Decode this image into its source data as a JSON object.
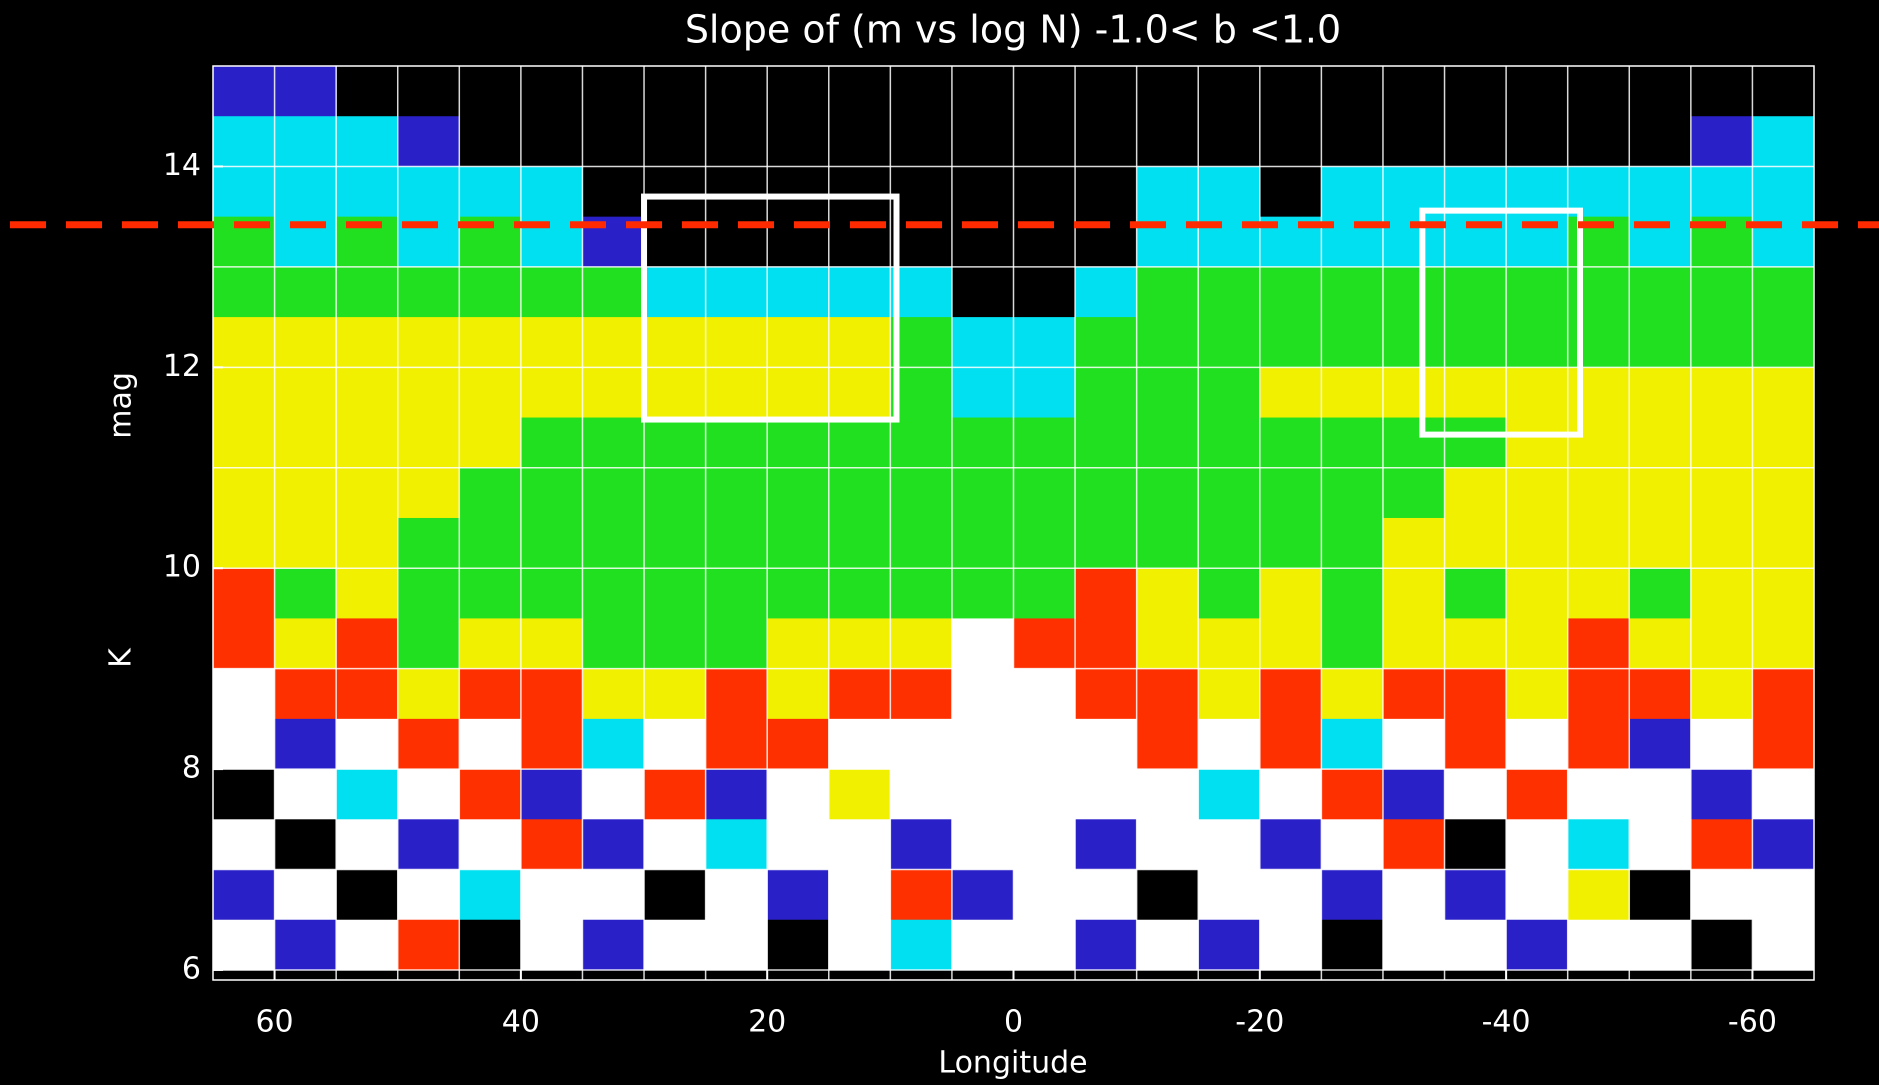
{
  "chart_data": {
    "type": "heatmap",
    "title": "Slope of (m vs log N) -1.0< b <1.0",
    "xlabel": "Longitude",
    "ylabel": "K mag",
    "xlim": [
      65,
      -65
    ],
    "ylim": [
      5.9,
      15
    ],
    "xticks": [
      60,
      40,
      20,
      0,
      -20,
      -40,
      -60
    ],
    "yticks": [
      6,
      8,
      10,
      12,
      14
    ],
    "grid": true,
    "xgrid": [
      60,
      55,
      50,
      45,
      40,
      35,
      30,
      25,
      20,
      15,
      10,
      5,
      0,
      -5,
      -10,
      -15,
      -20,
      -25,
      -30,
      -35,
      -40,
      -45,
      -50,
      -55,
      -60
    ],
    "ygrid": [
      6,
      7,
      8,
      9,
      10,
      11,
      12,
      13,
      14
    ],
    "x_edges": [
      65,
      60,
      55,
      50,
      45,
      40,
      35,
      30,
      25,
      20,
      15,
      10,
      5,
      0,
      -5,
      -10,
      -15,
      -20,
      -25,
      -30,
      -35,
      -40,
      -45,
      -50,
      -55,
      -60,
      -65
    ],
    "y_edges": [
      15,
      14.5,
      14,
      13.5,
      13,
      12.5,
      12,
      11.5,
      11,
      10.5,
      10,
      9.5,
      9,
      8.5,
      8,
      7.5,
      7,
      6.5,
      6
    ],
    "colormap": [
      {
        "value": 0,
        "color": "#000000"
      },
      {
        "value": 0.1,
        "color": "#2a20c8"
      },
      {
        "value": 0.25,
        "color": "#00e0f0"
      },
      {
        "value": 0.4,
        "color": "#20e020"
      },
      {
        "value": 0.55,
        "color": "#f0f000"
      },
      {
        "value": 0.7,
        "color": "#ff3000"
      },
      {
        "value": 0.9,
        "color": "#ffffff"
      }
    ],
    "z": [
      [
        0.1,
        0.1,
        null,
        null,
        null,
        null,
        null,
        null,
        null,
        null,
        null,
        null,
        null,
        null,
        null,
        null,
        null,
        null,
        null,
        null,
        null,
        null,
        null,
        null,
        null,
        null
      ],
      [
        0.25,
        0.25,
        0.3,
        0.2,
        null,
        null,
        null,
        null,
        null,
        null,
        null,
        null,
        null,
        null,
        null,
        null,
        null,
        null,
        null,
        null,
        null,
        null,
        null,
        null,
        0.2,
        0.25
      ],
      [
        0.3,
        0.3,
        0.3,
        0.3,
        0.25,
        0.3,
        null,
        null,
        null,
        null,
        null,
        null,
        null,
        null,
        null,
        0.25,
        0.25,
        null,
        0.25,
        0.3,
        0.3,
        0.3,
        0.3,
        0.3,
        0.3,
        0.3
      ],
      [
        0.4,
        0.35,
        0.4,
        0.35,
        0.4,
        0.35,
        0.2,
        null,
        null,
        null,
        null,
        null,
        null,
        null,
        null,
        0.35,
        0.35,
        0.3,
        0.35,
        0.3,
        0.35,
        0.35,
        0.4,
        0.35,
        0.4,
        0.35
      ],
      [
        0.45,
        0.45,
        0.45,
        0.45,
        0.45,
        0.45,
        0.4,
        0.35,
        0.35,
        0.35,
        0.35,
        0.35,
        null,
        null,
        0.3,
        0.4,
        0.4,
        0.4,
        0.4,
        0.4,
        0.4,
        0.4,
        0.4,
        0.4,
        0.4,
        0.4
      ],
      [
        0.6,
        0.6,
        0.6,
        0.6,
        0.6,
        0.6,
        0.6,
        0.65,
        0.65,
        0.65,
        0.65,
        0.45,
        0.25,
        0.25,
        0.4,
        0.4,
        0.4,
        0.5,
        0.5,
        0.5,
        0.5,
        0.5,
        0.5,
        0.5,
        0.5,
        0.5
      ],
      [
        0.6,
        0.6,
        0.6,
        0.6,
        0.6,
        0.6,
        0.6,
        0.62,
        0.62,
        0.62,
        0.62,
        0.45,
        0.35,
        0.35,
        0.4,
        0.4,
        0.4,
        0.55,
        0.55,
        0.55,
        0.55,
        0.55,
        0.6,
        0.6,
        0.6,
        0.6
      ],
      [
        0.65,
        0.65,
        0.65,
        0.65,
        0.65,
        0.5,
        0.5,
        0.5,
        0.5,
        0.5,
        0.5,
        0.4,
        0.4,
        0.4,
        0.4,
        0.45,
        0.45,
        0.45,
        0.45,
        0.45,
        0.45,
        0.6,
        0.6,
        0.6,
        0.6,
        0.6
      ],
      [
        0.6,
        0.6,
        0.6,
        0.6,
        0.45,
        0.45,
        0.45,
        0.45,
        0.45,
        0.45,
        0.45,
        0.45,
        0.4,
        0.4,
        0.4,
        0.45,
        0.45,
        0.45,
        0.45,
        0.45,
        0.55,
        0.55,
        0.55,
        0.55,
        0.55,
        0.55
      ],
      [
        0.55,
        0.55,
        0.55,
        0.45,
        0.45,
        0.45,
        0.45,
        0.45,
        0.45,
        0.45,
        0.45,
        0.4,
        0.4,
        0.4,
        0.4,
        0.45,
        0.45,
        0.45,
        0.45,
        0.55,
        0.55,
        0.55,
        0.55,
        0.55,
        0.55,
        0.55
      ],
      [
        0.7,
        0.5,
        0.6,
        0.45,
        0.5,
        0.45,
        0.5,
        0.45,
        0.4,
        0.5,
        0.45,
        0.45,
        0.4,
        0.45,
        0.7,
        0.65,
        0.5,
        0.55,
        0.45,
        0.6,
        0.5,
        0.55,
        0.6,
        0.5,
        0.65,
        0.55
      ],
      [
        0.8,
        0.6,
        0.7,
        0.5,
        0.55,
        0.6,
        0.5,
        0.45,
        0.5,
        0.55,
        0.6,
        0.65,
        0.9,
        0.85,
        0.7,
        0.6,
        0.55,
        0.6,
        0.5,
        0.65,
        0.55,
        0.6,
        0.7,
        0.6,
        0.55,
        0.65
      ],
      [
        0.9,
        0.7,
        0.8,
        0.6,
        0.7,
        0.75,
        0.6,
        0.65,
        0.7,
        0.6,
        0.7,
        0.8,
        1,
        1,
        0.85,
        0.7,
        0.65,
        0.7,
        0.6,
        0.75,
        0.7,
        0.65,
        0.8,
        0.7,
        0.6,
        0.75
      ],
      [
        1,
        0.2,
        0.9,
        0.7,
        1,
        0.8,
        0.3,
        0.9,
        0.7,
        0.8,
        1,
        0.9,
        1,
        1,
        1,
        0.8,
        0.9,
        0.7,
        0.3,
        0.9,
        0.8,
        1,
        0.7,
        0.2,
        0.9,
        0.8
      ],
      [
        0.05,
        1,
        0.3,
        1,
        0.7,
        0.1,
        1,
        0.8,
        0.2,
        1,
        0.6,
        1,
        1,
        1,
        0.9,
        1,
        0.3,
        1,
        0.8,
        0.1,
        1,
        0.7,
        0.9,
        1,
        0.2,
        1
      ],
      [
        1,
        0.05,
        1,
        0.2,
        1,
        0.8,
        0.1,
        1,
        0.3,
        0.9,
        1,
        0.15,
        1,
        1,
        0.2,
        0.9,
        1,
        0.1,
        1,
        0.7,
        0.05,
        1,
        0.3,
        1,
        0.8,
        0.1
      ],
      [
        0.1,
        1,
        0.05,
        1,
        0.3,
        1,
        0.9,
        0.05,
        1,
        0.2,
        1,
        0.8,
        0.1,
        1,
        1,
        0.05,
        1,
        0.9,
        0.2,
        1,
        0.1,
        1,
        0.6,
        0.05,
        1,
        1
      ],
      [
        1,
        0.1,
        1,
        0.8,
        0.05,
        1,
        0.2,
        1,
        1,
        0.05,
        1,
        0.3,
        1,
        0.9,
        0.1,
        1,
        0.2,
        1,
        0.05,
        1,
        1,
        0.1,
        1,
        0.9,
        0.05,
        1
      ]
    ],
    "hline": {
      "value": 13.42,
      "color": "#ff2a00"
    },
    "boxes": [
      {
        "x": [
          30,
          9.5
        ],
        "y": [
          13.7,
          11.48
        ],
        "color": "#ffffff"
      },
      {
        "x": [
          -33.2,
          -46
        ],
        "y": [
          13.56,
          11.33
        ],
        "color": "#ffffff"
      }
    ]
  }
}
